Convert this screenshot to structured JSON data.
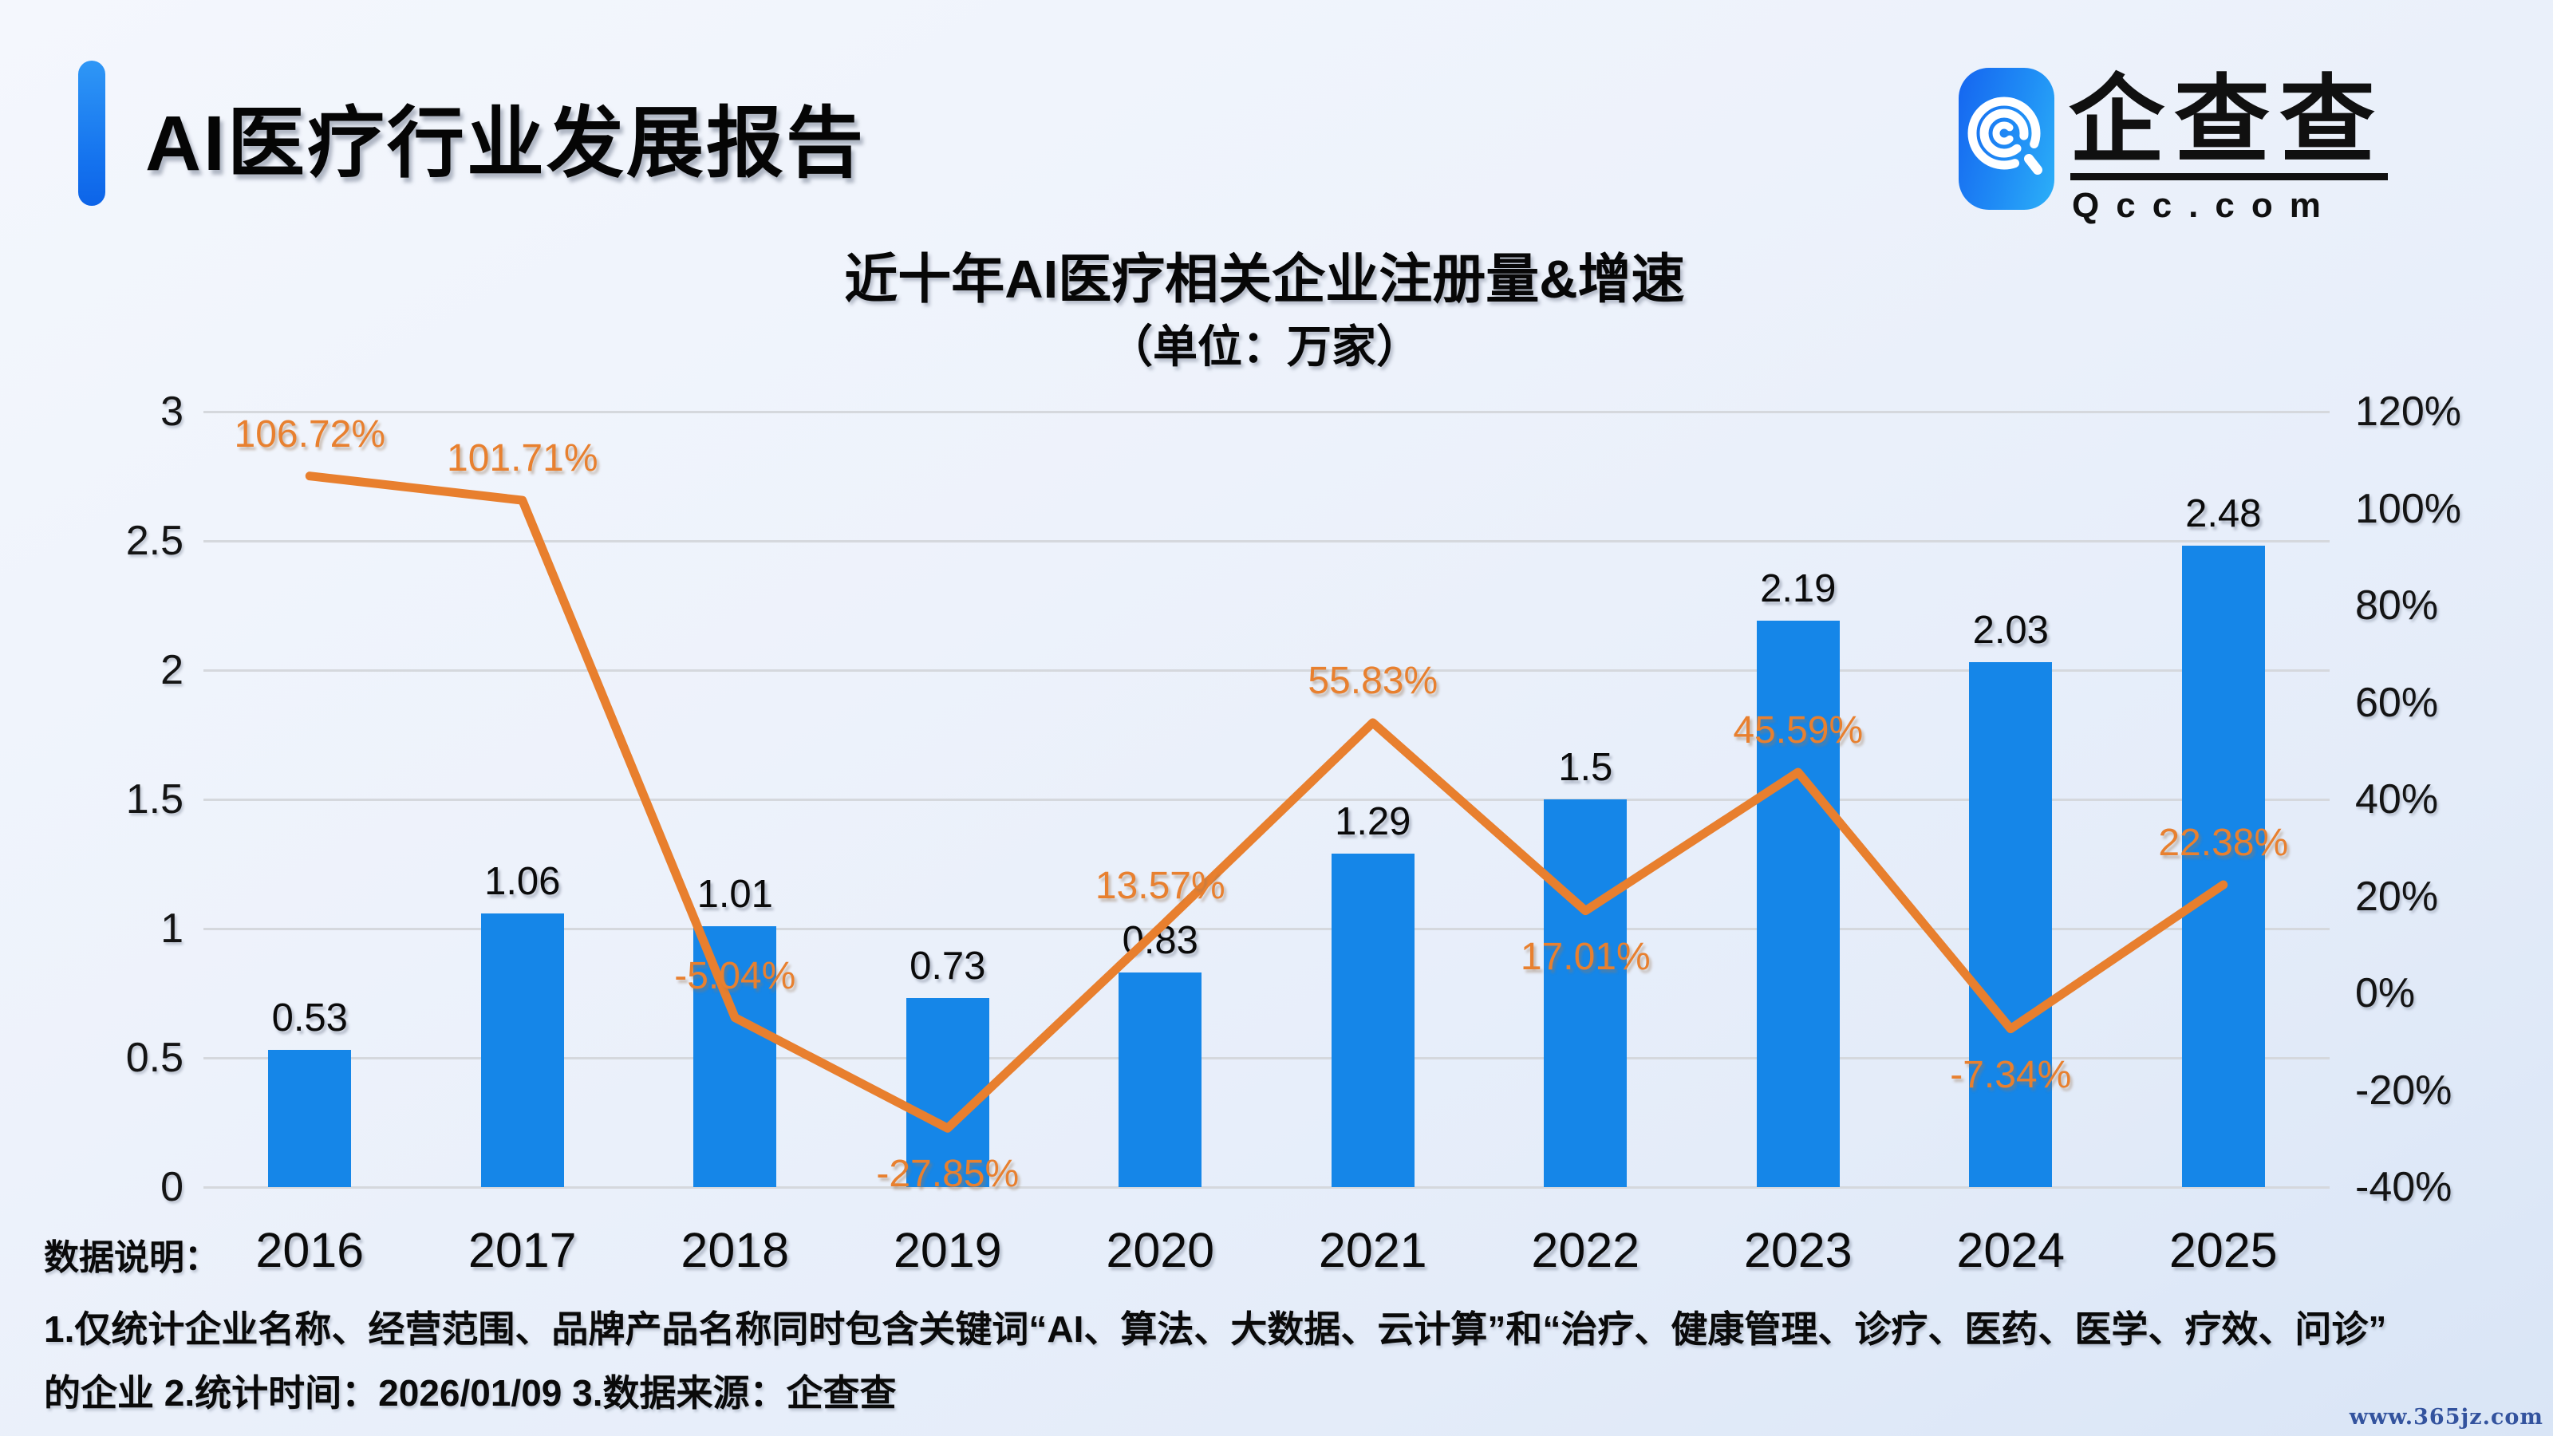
{
  "header": {
    "title": "AI医疗行业发展报告"
  },
  "logo": {
    "name": "企查查",
    "domain": "Qcc.com"
  },
  "chart_data": {
    "type": "bar+line",
    "title": "近十年AI医疗相关企业注册量&增速",
    "subtitle": "（单位：万家）",
    "categories": [
      "2016",
      "2017",
      "2018",
      "2019",
      "2020",
      "2021",
      "2022",
      "2023",
      "2024",
      "2025"
    ],
    "series": [
      {
        "name": "企业注册量",
        "type": "bar",
        "axis": "left",
        "color": "#1586e8",
        "values": [
          0.53,
          1.06,
          1.01,
          0.73,
          0.83,
          1.29,
          1.5,
          2.19,
          2.03,
          2.48
        ],
        "labels": [
          "0.53",
          "1.06",
          "1.01",
          "0.73",
          "0.83",
          "1.29",
          "1.5",
          "2.19",
          "2.03",
          "2.48"
        ]
      },
      {
        "name": "增速",
        "type": "line",
        "axis": "right",
        "color": "#e87f2e",
        "values": [
          106.72,
          101.71,
          -5.04,
          -27.85,
          13.57,
          55.83,
          17.01,
          45.59,
          -7.34,
          22.38
        ],
        "labels": [
          "106.72%",
          "101.71%",
          "-5.04%",
          "-27.85%",
          "13.57%",
          "55.83%",
          "17.01%",
          "45.59%",
          "-7.34%",
          "22.38%"
        ],
        "label_positions": [
          "above",
          "above",
          "above",
          "below",
          "above",
          "above",
          "below",
          "above",
          "below",
          "above"
        ]
      }
    ],
    "left_axis": {
      "min": 0,
      "max": 3,
      "ticks": [
        "3",
        "2.5",
        "2",
        "1.5",
        "1",
        "0.5",
        "0"
      ]
    },
    "right_axis": {
      "min": -40,
      "max": 120,
      "ticks": [
        "120%",
        "100%",
        "80%",
        "60%",
        "40%",
        "20%",
        "0%",
        "-20%",
        "-40%"
      ]
    },
    "grid": true,
    "legend": "none"
  },
  "footer": {
    "label": "数据说明：",
    "line1": "1.仅统计企业名称、经营范围、品牌产品名称同时包含关键词“AI、算法、大数据、云计算”和“治疗、健康管理、诊疗、医药、医学、疗效、问诊”",
    "line2": "的企业  2.统计时间：2026/01/09   3.数据来源：企查查"
  },
  "watermark": "www.365jz.com"
}
